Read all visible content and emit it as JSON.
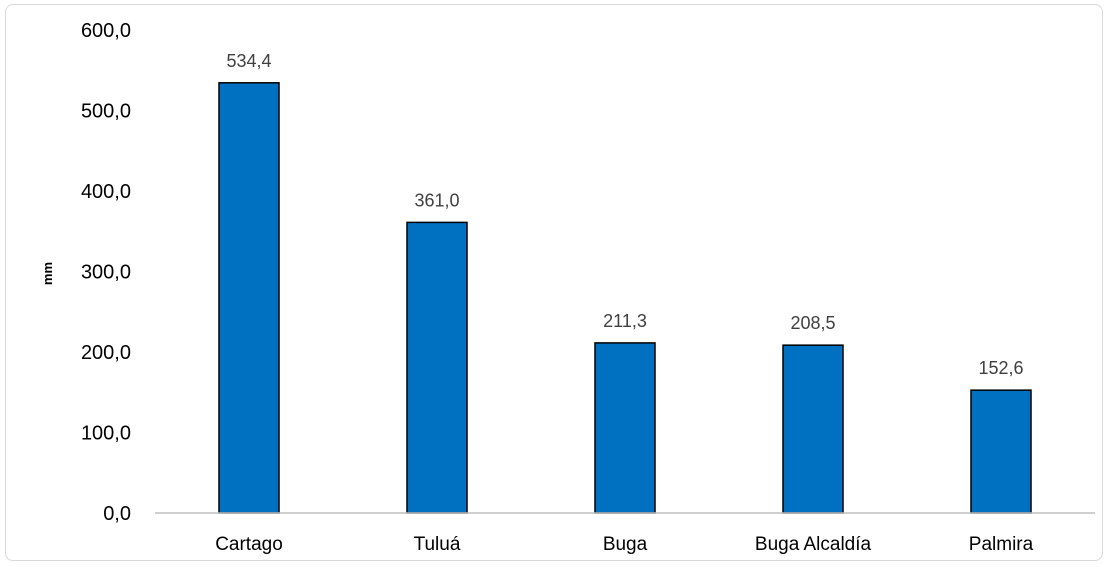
{
  "chart_data": {
    "type": "bar",
    "title": "",
    "xlabel": "",
    "ylabel": "mm",
    "categories": [
      "Cartago",
      "Tuluá",
      "Buga",
      "Buga Alcaldía",
      "Palmira"
    ],
    "values": [
      534.4,
      361.0,
      211.3,
      208.5,
      152.6
    ],
    "data_labels": [
      "534,4",
      "361,0",
      "211,3",
      "208,5",
      "152,6"
    ],
    "ylim": [
      0,
      600
    ],
    "yticks": [
      0,
      100,
      200,
      300,
      400,
      500,
      600
    ],
    "ytick_labels": [
      "0,0",
      "100,0",
      "200,0",
      "300,0",
      "400,0",
      "500,0",
      "600,0"
    ],
    "grid": false,
    "legend": "none",
    "colors": {
      "bar_fill": "#0070C0",
      "bar_stroke": "#000000",
      "axis": "#bfbfbf",
      "data_label": "#404040"
    }
  }
}
